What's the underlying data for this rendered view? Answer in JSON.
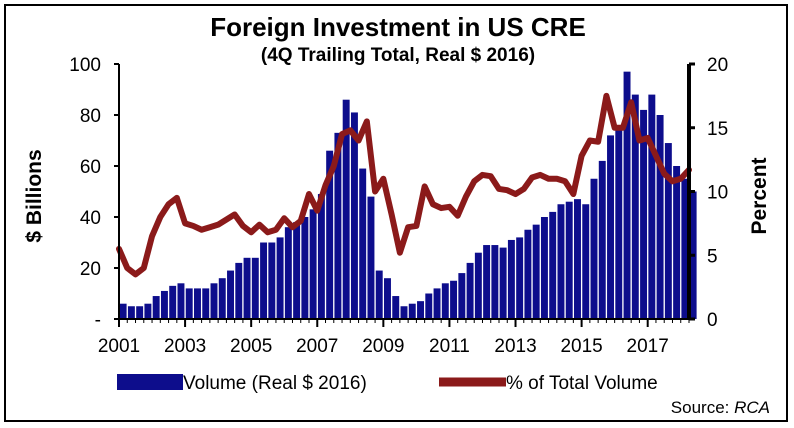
{
  "chart_data": {
    "type": "bar+line",
    "title": "Foreign Investment in US CRE",
    "subtitle": "(4Q Trailing Total, Real $ 2016)",
    "ylabel_left": "$ Billions",
    "ylabel_right": "Percent",
    "ylim_left": [
      0,
      100
    ],
    "ylim_right": [
      0,
      20
    ],
    "yticks_left": [
      "-",
      "20",
      "40",
      "60",
      "80",
      "100"
    ],
    "yticks_right": [
      "0",
      "5",
      "10",
      "15",
      "20"
    ],
    "xticks": [
      "2001",
      "2003",
      "2005",
      "2007",
      "2009",
      "2011",
      "2013",
      "2015",
      "2017"
    ],
    "x_start": 2001.0,
    "x_step": 0.25,
    "grid": false,
    "legend_position": "bottom",
    "series": [
      {
        "name": "Volume (Real $ 2016)",
        "type": "bar",
        "color": "#0d0d8c",
        "values": [
          6,
          5,
          5,
          6,
          9,
          11,
          13,
          14,
          12,
          12,
          12,
          14,
          16,
          19,
          22,
          24,
          24,
          30,
          30,
          32,
          36,
          38,
          40,
          43,
          49,
          66,
          73,
          86,
          81,
          59,
          48,
          19,
          16,
          9,
          5,
          6,
          7,
          10,
          12,
          14,
          15,
          18,
          22,
          26,
          29,
          29,
          28,
          31,
          32,
          35,
          37,
          40,
          42,
          45,
          46,
          47,
          45,
          55,
          62,
          72,
          75,
          97,
          88,
          82,
          88,
          80,
          69,
          60,
          55,
          50
        ]
      },
      {
        "name": "% of Total Volume",
        "type": "line",
        "color": "#8b1a1a",
        "values": [
          5.5,
          4,
          3.5,
          4,
          6.5,
          8,
          9,
          9.5,
          7.5,
          7.3,
          7,
          7.2,
          7.4,
          7.8,
          8.2,
          7.3,
          6.8,
          7.4,
          6.8,
          7,
          7.9,
          7.2,
          7.7,
          9.8,
          8.5,
          10.5,
          12,
          14.5,
          14.8,
          14,
          15.5,
          10,
          11,
          8.2,
          5.2,
          7.2,
          7.3,
          10.4,
          9,
          8.7,
          8.8,
          8.1,
          9.6,
          10.8,
          11.3,
          11.2,
          10.2,
          10.1,
          9.8,
          10.2,
          11.1,
          11.3,
          11,
          11,
          10.8,
          9.8,
          12.8,
          14,
          13.9,
          17.5,
          15,
          15,
          17,
          14,
          14.2,
          12.8,
          11.4,
          10.8,
          11,
          11.7
        ]
      }
    ],
    "source_label": "Source: ",
    "source_value": "RCA"
  }
}
